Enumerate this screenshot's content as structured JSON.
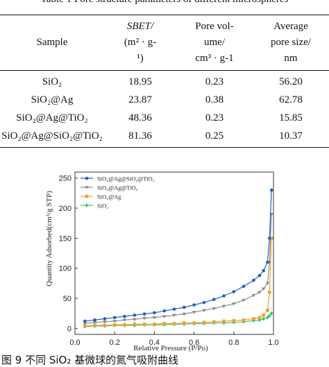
{
  "table": {
    "caption": "Table 1 Pore structure parameters of different microspheres",
    "headers": {
      "sample": "Sample",
      "sbet_line1": "SBET/",
      "sbet_line2": "(m² · g-",
      "sbet_line3": "¹)",
      "pv_line1": "Pore vol-",
      "pv_line2": "ume/",
      "pv_line3": "cm³ · g-1",
      "ps_line1": "Average",
      "ps_line2": "pore size/",
      "ps_line3": "nm"
    },
    "rows": [
      {
        "sample": "SiO₂",
        "sbet": "18.95",
        "pore_volume": "0.23",
        "pore_size": "56.20"
      },
      {
        "sample": "SiO₂@Ag",
        "sbet": "23.87",
        "pore_volume": "0.38",
        "pore_size": "62.78"
      },
      {
        "sample": "SiO₂@Ag@TiO₂",
        "sbet": "48.36",
        "pore_volume": "0.23",
        "pore_size": "15.85"
      },
      {
        "sample": "SiO₂@Ag@SiO₂@TiO₂",
        "sbet": "81.36",
        "pore_volume": "0.25",
        "pore_size": "10.37"
      }
    ]
  },
  "figure_caption": "图 9 不同 SiO₂ 基微球的氮气吸附曲线",
  "chart_data": {
    "type": "line",
    "xlabel": "Relative Pressure (P/Po)",
    "ylabel": "Quantity Adsorbed(cm³/g STP)",
    "xlim": [
      0,
      1.0
    ],
    "ylim": [
      -10,
      260
    ],
    "xticks": [
      "0.0",
      "0.2",
      "0.4",
      "0.6",
      "0.8",
      "1.0"
    ],
    "yticks": [
      "0",
      "50",
      "100",
      "150",
      "200",
      "250"
    ],
    "legend_position": "top-left",
    "grid": false,
    "series": [
      {
        "name": "SiO₂@Ag@SiO₂@TiO₂",
        "color": "#1f5fbf",
        "marker": "circle",
        "x": [
          0.05,
          0.1,
          0.15,
          0.2,
          0.25,
          0.3,
          0.35,
          0.4,
          0.45,
          0.5,
          0.55,
          0.6,
          0.65,
          0.7,
          0.75,
          0.8,
          0.85,
          0.9,
          0.93,
          0.95,
          0.97,
          0.98,
          0.99
        ],
        "y": [
          12,
          14,
          16,
          18,
          20,
          22,
          24,
          26,
          29,
          32,
          35,
          39,
          43,
          48,
          54,
          61,
          70,
          80,
          88,
          96,
          110,
          150,
          230
        ]
      },
      {
        "name": "SiO₂@Ag@TiO₂",
        "color": "#8a8a8a",
        "marker": "triangle",
        "x": [
          0.05,
          0.1,
          0.15,
          0.2,
          0.25,
          0.3,
          0.35,
          0.4,
          0.45,
          0.5,
          0.55,
          0.6,
          0.65,
          0.7,
          0.75,
          0.8,
          0.85,
          0.9,
          0.93,
          0.95,
          0.97,
          0.98,
          0.99
        ],
        "y": [
          8,
          10,
          11,
          12,
          14,
          15,
          17,
          18,
          20,
          22,
          24,
          27,
          30,
          33,
          37,
          41,
          47,
          55,
          60,
          66,
          75,
          110,
          190
        ]
      },
      {
        "name": "SiO₂@Ag",
        "color": "#f0a030",
        "marker": "square",
        "x": [
          0.05,
          0.1,
          0.15,
          0.2,
          0.25,
          0.3,
          0.35,
          0.4,
          0.45,
          0.5,
          0.55,
          0.6,
          0.65,
          0.7,
          0.75,
          0.8,
          0.85,
          0.9,
          0.93,
          0.95,
          0.97,
          0.98,
          0.99
        ],
        "y": [
          4,
          5,
          5,
          6,
          6,
          7,
          7,
          7,
          8,
          8,
          9,
          9,
          10,
          11,
          12,
          13,
          14,
          16,
          18,
          22,
          30,
          60,
          150
        ]
      },
      {
        "name": "SiO₂",
        "color": "#3fbf6f",
        "marker": "diamond",
        "x": [
          0.05,
          0.1,
          0.15,
          0.2,
          0.25,
          0.3,
          0.35,
          0.4,
          0.45,
          0.5,
          0.55,
          0.6,
          0.65,
          0.7,
          0.75,
          0.8,
          0.85,
          0.9,
          0.93,
          0.95,
          0.97,
          0.98,
          0.99
        ],
        "y": [
          3,
          4,
          4,
          5,
          5,
          5,
          6,
          6,
          6,
          7,
          7,
          8,
          8,
          9,
          9,
          10,
          11,
          13,
          14,
          16,
          18,
          21,
          25
        ]
      }
    ]
  }
}
